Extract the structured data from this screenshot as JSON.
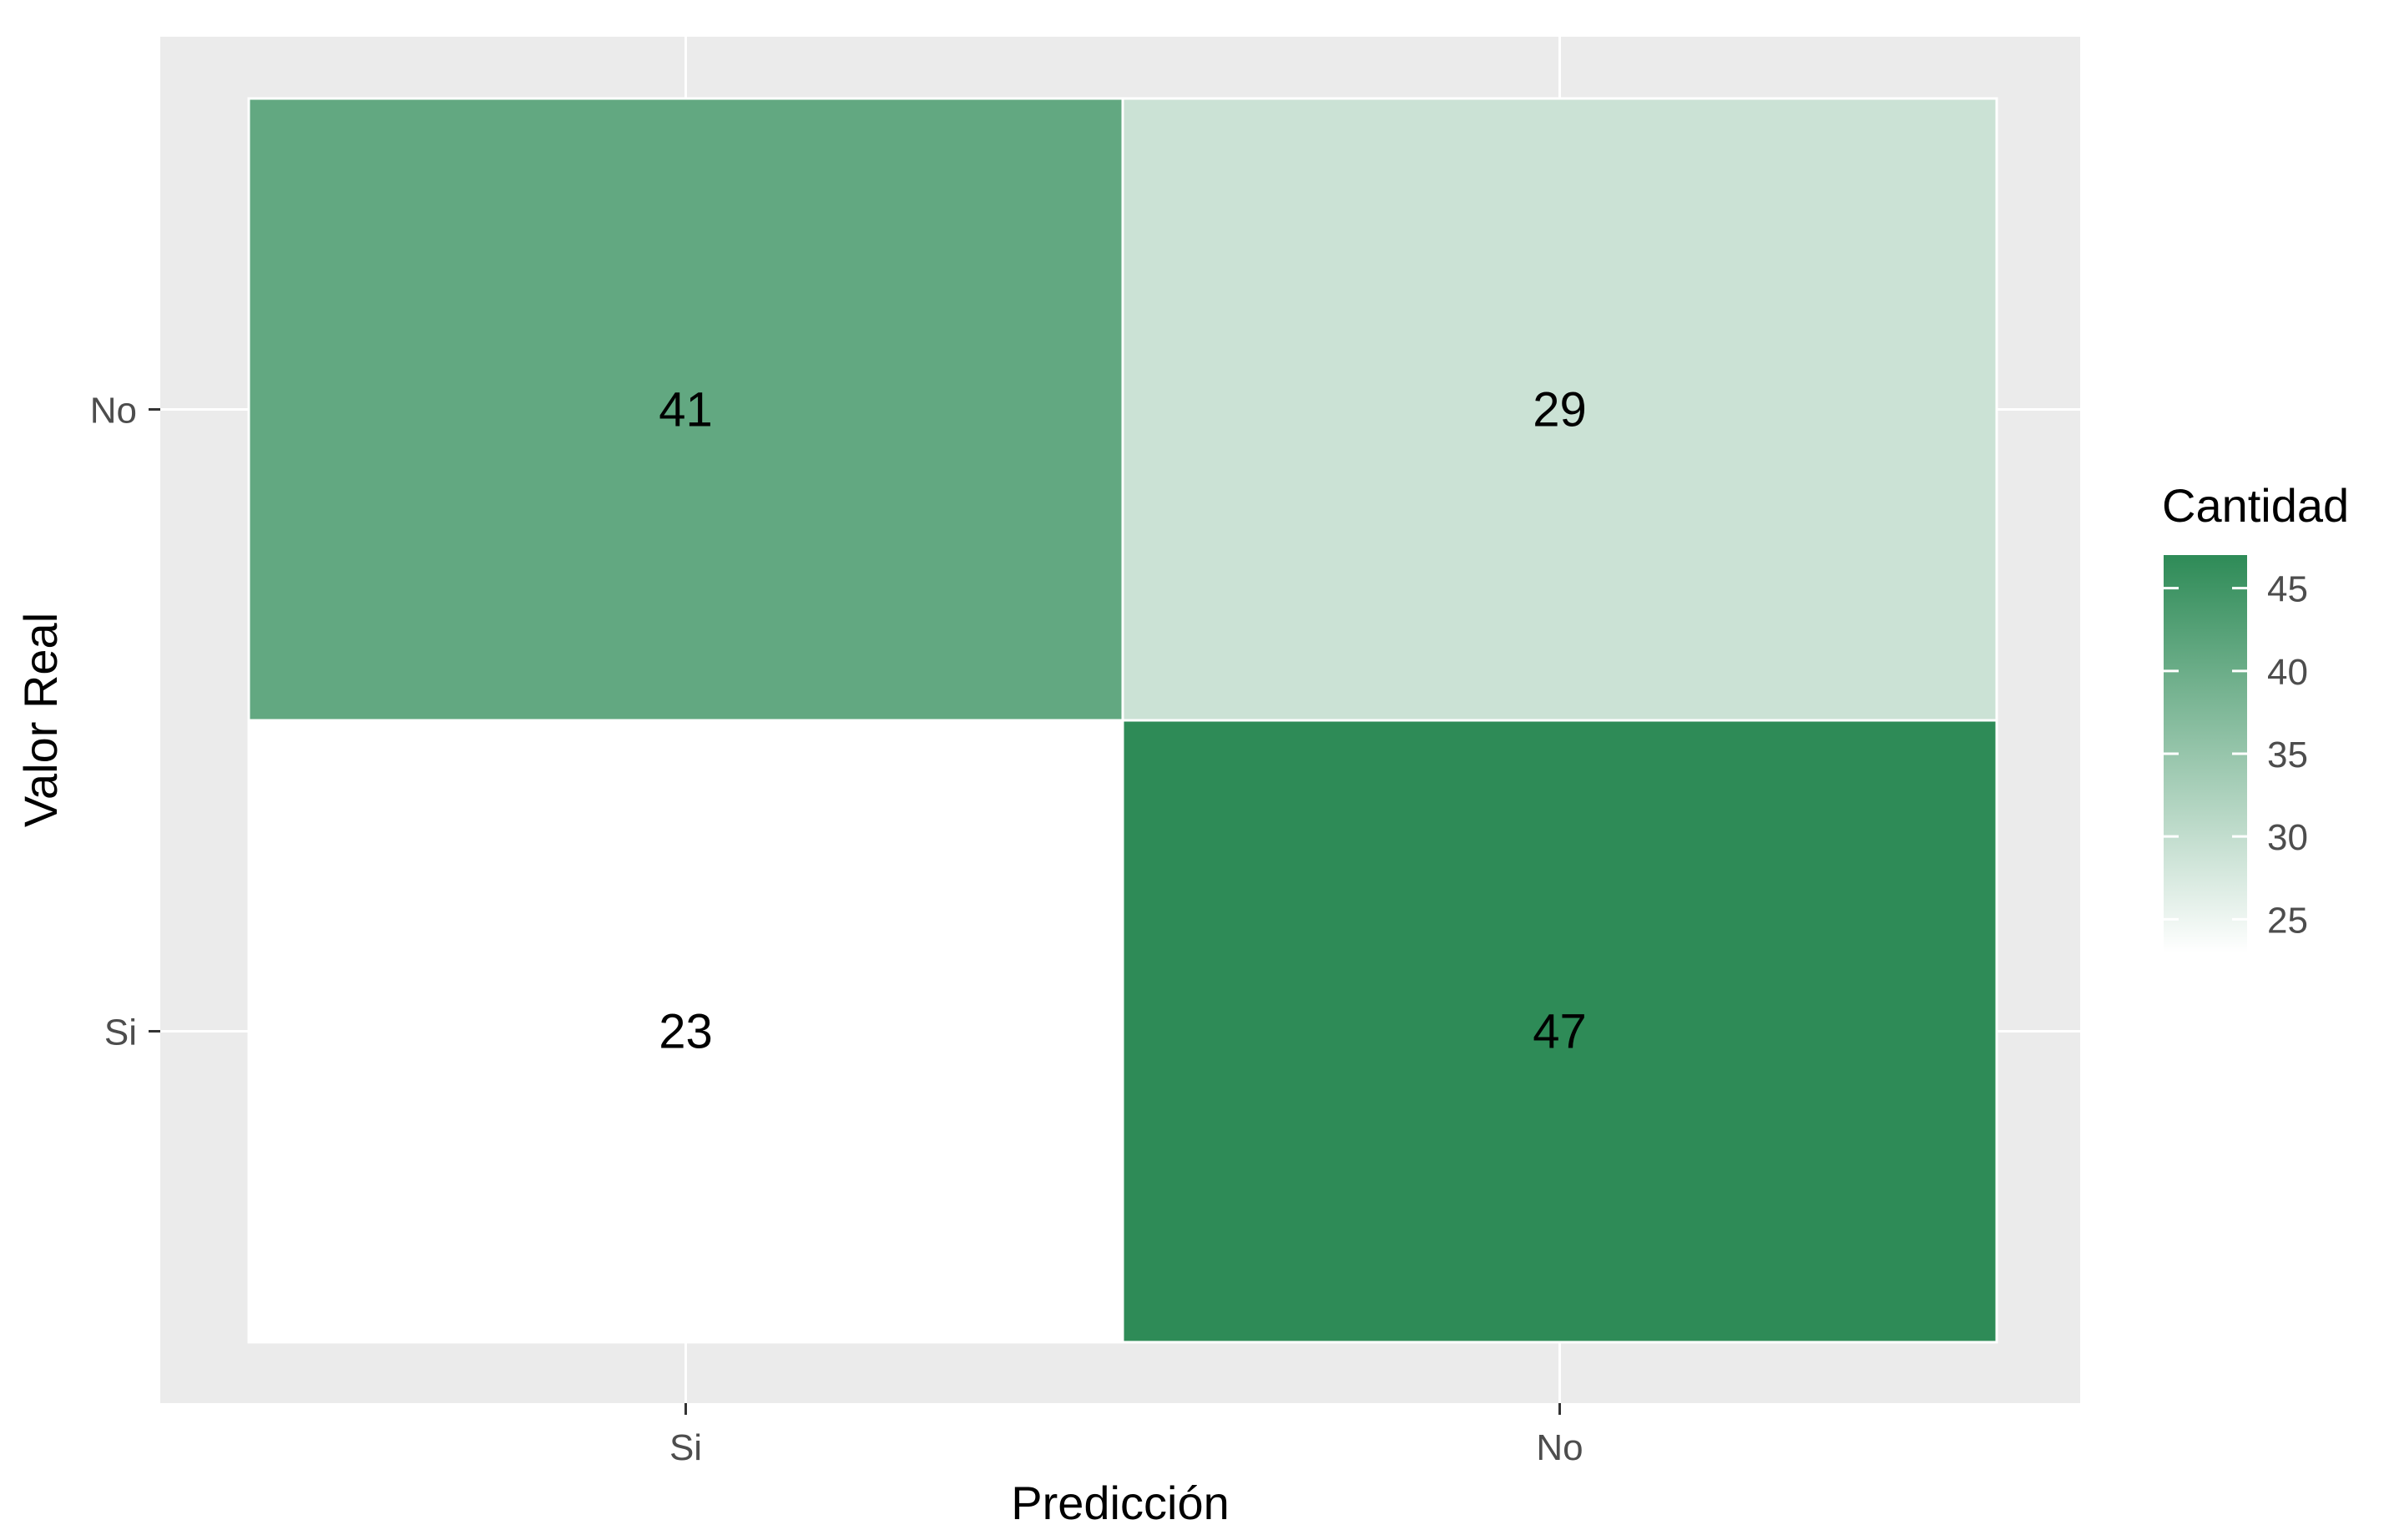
{
  "chart_data": {
    "type": "heatmap",
    "title": "",
    "xlabel": "Predicción",
    "ylabel": "Valor Real",
    "x_categories": [
      "Si",
      "No"
    ],
    "y_categories": [
      "Si",
      "No"
    ],
    "cells": [
      {
        "x": "Si",
        "y": "No",
        "value": 41
      },
      {
        "x": "No",
        "y": "No",
        "value": 29
      },
      {
        "x": "Si",
        "y": "Si",
        "value": 23
      },
      {
        "x": "No",
        "y": "Si",
        "value": 47
      }
    ],
    "legend": {
      "title": "Cantidad",
      "placement": "right",
      "range": [
        23,
        47
      ],
      "ticks": [
        25,
        30,
        35,
        40,
        45
      ],
      "low_color": "#ffffff",
      "high_color": "#2e8b57"
    },
    "grid": true,
    "panel_background": "#ebebeb",
    "gridline_color": "#ffffff"
  }
}
